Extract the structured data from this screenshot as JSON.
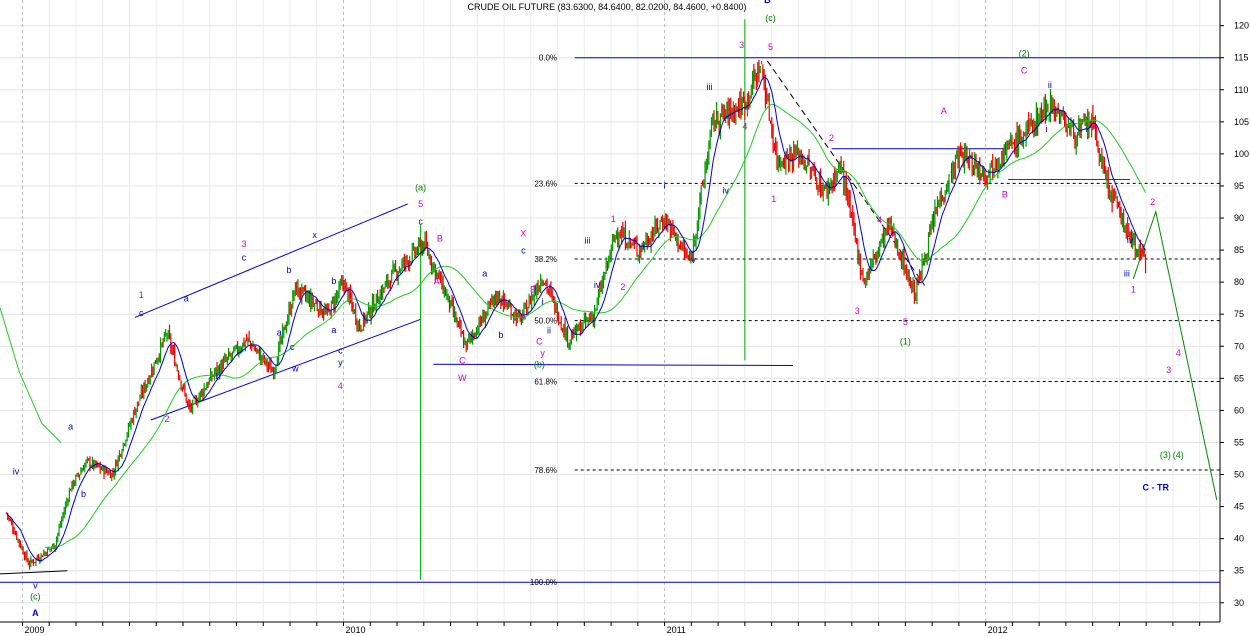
{
  "chart_data": {
    "type": "candlestick",
    "title": "CRUDE OIL FUTURE (83.6300, 84.6400, 82.0200, 84.4600, +0.8400)",
    "ylim": [
      27,
      124
    ],
    "y_ticks": [
      30,
      35,
      40,
      45,
      50,
      55,
      60,
      65,
      70,
      75,
      80,
      85,
      90,
      95,
      100,
      105,
      110,
      115,
      120
    ],
    "x_labels": [
      "2009",
      "2010",
      "2011",
      "2012"
    ],
    "price_path": [
      [
        2008.95,
        44
      ],
      [
        2009.02,
        36
      ],
      [
        2009.1,
        39
      ],
      [
        2009.15,
        48
      ],
      [
        2009.2,
        52
      ],
      [
        2009.28,
        50
      ],
      [
        2009.35,
        60
      ],
      [
        2009.45,
        72
      ],
      [
        2009.52,
        60
      ],
      [
        2009.6,
        66
      ],
      [
        2009.7,
        71
      ],
      [
        2009.78,
        66
      ],
      [
        2009.85,
        79
      ],
      [
        2009.95,
        75
      ],
      [
        2010.0,
        80
      ],
      [
        2010.05,
        73
      ],
      [
        2010.1,
        77
      ],
      [
        2010.15,
        81
      ],
      [
        2010.25,
        86
      ],
      [
        2010.32,
        78
      ],
      [
        2010.38,
        70
      ],
      [
        2010.48,
        78
      ],
      [
        2010.55,
        74
      ],
      [
        2010.62,
        81
      ],
      [
        2010.7,
        71
      ],
      [
        2010.78,
        75
      ],
      [
        2010.85,
        88
      ],
      [
        2010.92,
        85
      ],
      [
        2011.0,
        90
      ],
      [
        2011.08,
        83
      ],
      [
        2011.15,
        105
      ],
      [
        2011.25,
        108
      ],
      [
        2011.3,
        114
      ],
      [
        2011.35,
        99
      ],
      [
        2011.42,
        100
      ],
      [
        2011.5,
        94
      ],
      [
        2011.55,
        98
      ],
      [
        2011.62,
        80
      ],
      [
        2011.7,
        89
      ],
      [
        2011.78,
        78
      ],
      [
        2011.85,
        92
      ],
      [
        2011.92,
        100
      ],
      [
        2012.0,
        97
      ],
      [
        2012.05,
        100
      ],
      [
        2012.12,
        103
      ],
      [
        2012.2,
        108
      ],
      [
        2012.28,
        103
      ],
      [
        2012.33,
        105
      ],
      [
        2012.38,
        95
      ],
      [
        2012.45,
        87
      ],
      [
        2012.5,
        83
      ]
    ],
    "fib_levels": [
      {
        "label": "0.0%",
        "value": 115
      },
      {
        "label": "23.6%",
        "value": 95.4
      },
      {
        "label": "38.2%",
        "value": 83.6
      },
      {
        "label": "50.0%",
        "value": 74
      },
      {
        "label": "61.8%",
        "value": 64.5
      },
      {
        "label": "78.6%",
        "value": 50.7
      },
      {
        "label": "100.0%",
        "value": 33.2
      }
    ],
    "wave_labels": [
      {
        "t": "B",
        "x": 2011.32,
        "y": 123.5,
        "c": "#0000cc",
        "bold": true
      },
      {
        "t": "(c)",
        "x": 2011.33,
        "y": 120.7,
        "c": "#008000"
      },
      {
        "t": "3",
        "x": 2011.24,
        "y": 116.5,
        "c": "#cc00cc"
      },
      {
        "t": "5",
        "x": 2011.33,
        "y": 116.2,
        "c": "#cc00cc"
      },
      {
        "t": "iii",
        "x": 2011.14,
        "y": 110,
        "c": "#0000aa"
      },
      {
        "t": "4",
        "x": 2011.25,
        "y": 103.8,
        "c": "#cc00cc"
      },
      {
        "t": "iv",
        "x": 2011.19,
        "y": 93.8,
        "c": "#0000aa"
      },
      {
        "t": "1",
        "x": 2011.34,
        "y": 92.5,
        "c": "#cc00cc"
      },
      {
        "t": "i",
        "x": 2011.0,
        "y": 94.6,
        "c": "#0000aa"
      },
      {
        "t": "1",
        "x": 2010.84,
        "y": 89.4,
        "c": "#cc00cc"
      },
      {
        "t": "iii",
        "x": 2010.76,
        "y": 86,
        "c": "#0000aa"
      },
      {
        "t": "v",
        "x": 2011.09,
        "y": 83,
        "c": "#0000aa"
      },
      {
        "t": "iv",
        "x": 2010.79,
        "y": 79.1,
        "c": "#0000aa"
      },
      {
        "t": "2",
        "x": 2010.87,
        "y": 78.8,
        "c": "#cc00cc"
      },
      {
        "t": "(a)",
        "x": 2010.24,
        "y": 94.3,
        "c": "#008000"
      },
      {
        "t": "5",
        "x": 2010.24,
        "y": 91.7,
        "c": "#cc00cc"
      },
      {
        "t": "c",
        "x": 2010.24,
        "y": 89,
        "c": "#0000aa"
      },
      {
        "t": "B",
        "x": 2010.3,
        "y": 86.3,
        "c": "#cc00cc"
      },
      {
        "t": "A",
        "x": 2010.29,
        "y": 79.6,
        "c": "#cc00cc"
      },
      {
        "t": "C",
        "x": 2010.37,
        "y": 67.3,
        "c": "#cc00cc"
      },
      {
        "t": "W",
        "x": 2010.37,
        "y": 64.6,
        "c": "#cc00cc"
      },
      {
        "t": "X",
        "x": 2010.56,
        "y": 87.1,
        "c": "#cc00cc"
      },
      {
        "t": "c",
        "x": 2010.56,
        "y": 84.5,
        "c": "#0000aa"
      },
      {
        "t": "a",
        "x": 2010.44,
        "y": 80.9,
        "c": "#0000aa"
      },
      {
        "t": "B",
        "x": 2010.59,
        "y": 78.4,
        "c": "#cc00cc"
      },
      {
        "t": "i",
        "x": 2010.62,
        "y": 76.5,
        "c": "#0000aa"
      },
      {
        "t": "A",
        "x": 2010.56,
        "y": 74.2,
        "c": "#cc00cc"
      },
      {
        "t": "b",
        "x": 2010.49,
        "y": 71.3,
        "c": "#0000aa"
      },
      {
        "t": "ii",
        "x": 2010.64,
        "y": 72,
        "c": "#0000aa"
      },
      {
        "t": "C",
        "x": 2010.61,
        "y": 70.3,
        "c": "#cc00cc"
      },
      {
        "t": "y",
        "x": 2010.62,
        "y": 68.5,
        "c": "#cc00cc"
      },
      {
        "t": "(b)",
        "x": 2010.61,
        "y": 66.7,
        "c": "#008000"
      },
      {
        "t": "2",
        "x": 2011.52,
        "y": 102,
        "c": "#cc00cc"
      },
      {
        "t": "3",
        "x": 2011.6,
        "y": 75,
        "c": "#cc00cc"
      },
      {
        "t": "4",
        "x": 2011.67,
        "y": 89.2,
        "c": "#cc00cc"
      },
      {
        "t": "5",
        "x": 2011.75,
        "y": 73.3,
        "c": "#cc00cc"
      },
      {
        "t": "(1)",
        "x": 2011.75,
        "y": 70.3,
        "c": "#008000"
      },
      {
        "t": "A",
        "x": 2011.87,
        "y": 106.2,
        "c": "#cc00cc"
      },
      {
        "t": "B",
        "x": 2012.06,
        "y": 93.2,
        "c": "#cc00cc"
      },
      {
        "t": "(2)",
        "x": 2012.12,
        "y": 115.2,
        "c": "#008000"
      },
      {
        "t": "C",
        "x": 2012.12,
        "y": 112.5,
        "c": "#cc00cc"
      },
      {
        "t": "ii",
        "x": 2012.2,
        "y": 110.3,
        "c": "#0000aa"
      },
      {
        "t": "i",
        "x": 2012.19,
        "y": 103.4,
        "c": "#0000aa"
      },
      {
        "t": "iv",
        "x": 2012.45,
        "y": 86.1,
        "c": "#0000aa"
      },
      {
        "t": "iii",
        "x": 2012.44,
        "y": 80.9,
        "c": "#0000aa"
      },
      {
        "t": "1",
        "x": 2012.46,
        "y": 78.4,
        "c": "#cc00cc"
      },
      {
        "t": "2",
        "x": 2012.52,
        "y": 92,
        "c": "#cc00cc"
      },
      {
        "t": "4",
        "x": 2012.6,
        "y": 68.5,
        "c": "#cc00cc"
      },
      {
        "t": "3",
        "x": 2012.57,
        "y": 65.8,
        "c": "#cc00cc"
      },
      {
        "t": "(3)",
        "x": 2012.56,
        "y": 52.6,
        "c": "#008000"
      },
      {
        "t": "(4)",
        "x": 2012.6,
        "y": 52.6,
        "c": "#008000"
      },
      {
        "t": "C - TR",
        "x": 2012.53,
        "y": 47.5,
        "c": "#0000cc",
        "bold": true
      },
      {
        "t": "iv",
        "x": 2008.98,
        "y": 50,
        "c": "#0000aa"
      },
      {
        "t": "b",
        "x": 2009.19,
        "y": 46.5,
        "c": "#0000aa"
      },
      {
        "t": "v",
        "x": 2009.04,
        "y": 32.2,
        "c": "#0000aa"
      },
      {
        "t": "(c)",
        "x": 2009.04,
        "y": 30.5,
        "c": "#008000"
      },
      {
        "t": "A",
        "x": 2009.04,
        "y": 27.9,
        "c": "#0000cc",
        "bold": true
      },
      {
        "t": "a",
        "x": 2009.15,
        "y": 57,
        "c": "#0000aa"
      },
      {
        "t": "1",
        "x": 2009.37,
        "y": 77.5,
        "c": "#cc00cc"
      },
      {
        "t": "c",
        "x": 2009.37,
        "y": 74.7,
        "c": "#0000aa"
      },
      {
        "t": "2",
        "x": 2009.45,
        "y": 58.2,
        "c": "#cc00cc"
      },
      {
        "t": "a",
        "x": 2009.51,
        "y": 77,
        "c": "#0000aa"
      },
      {
        "t": "b",
        "x": 2009.61,
        "y": 64.8,
        "c": "#0000aa"
      },
      {
        "t": "3",
        "x": 2009.69,
        "y": 85.5,
        "c": "#cc00cc"
      },
      {
        "t": "c",
        "x": 2009.69,
        "y": 83.4,
        "c": "#0000aa"
      },
      {
        "t": "b",
        "x": 2009.83,
        "y": 81.4,
        "c": "#0000aa"
      },
      {
        "t": "a",
        "x": 2009.8,
        "y": 71.7,
        "c": "#0000aa"
      },
      {
        "t": "c",
        "x": 2009.84,
        "y": 69.4,
        "c": "#0000aa"
      },
      {
        "t": "w",
        "x": 2009.85,
        "y": 66.1,
        "c": "#0000aa"
      },
      {
        "t": "x",
        "x": 2009.91,
        "y": 86.9,
        "c": "#0000aa"
      },
      {
        "t": "b",
        "x": 2009.97,
        "y": 79.7,
        "c": "#0000aa"
      },
      {
        "t": "a",
        "x": 2009.97,
        "y": 72.1,
        "c": "#0000aa"
      },
      {
        "t": "c",
        "x": 2009.99,
        "y": 68.9,
        "c": "#0000aa"
      },
      {
        "t": "y",
        "x": 2009.99,
        "y": 67,
        "c": "#0000aa"
      },
      {
        "t": "4",
        "x": 2009.99,
        "y": 63.3,
        "c": "#cc00cc"
      }
    ],
    "grid": true,
    "legend": "none"
  }
}
